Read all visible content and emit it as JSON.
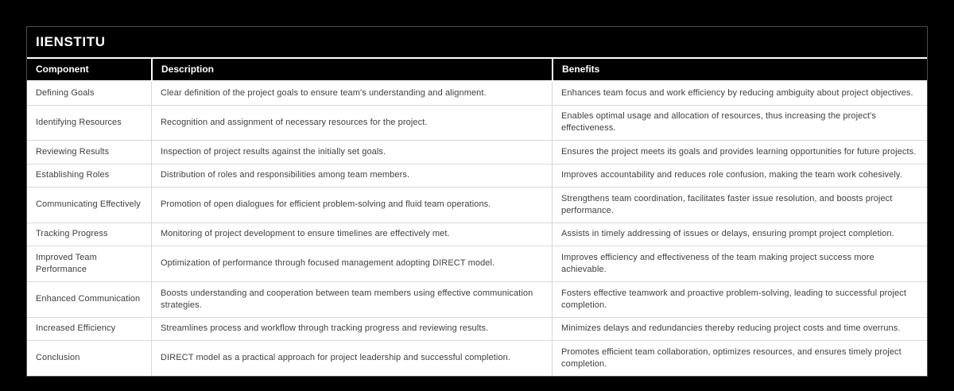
{
  "colors": {
    "page_bg": "#000000",
    "header_bg": "#000000",
    "header_text": "#ffffff",
    "body_bg": "#ffffff",
    "body_text": "#404040",
    "divider": "#d9d9d9",
    "frame_border": "#4d4d4d"
  },
  "table": {
    "title": "IIENSTITU",
    "columns": [
      "Component",
      "Description",
      "Benefits"
    ],
    "rows": [
      {
        "component": "Defining Goals",
        "description": "Clear definition of the project goals to ensure team's understanding and alignment.",
        "benefits": "Enhances team focus and work efficiency by reducing ambiguity about project objectives."
      },
      {
        "component": "Identifying Resources",
        "description": "Recognition and assignment of necessary resources for the project.",
        "benefits": "Enables optimal usage and allocation of resources, thus increasing the project's effectiveness."
      },
      {
        "component": "Reviewing Results",
        "description": "Inspection of project results against the initially set goals.",
        "benefits": "Ensures the project meets its goals and provides learning opportunities for future projects."
      },
      {
        "component": "Establishing Roles",
        "description": "Distribution of roles and responsibilities among team members.",
        "benefits": "Improves accountability and reduces role confusion, making the team work cohesively."
      },
      {
        "component": "Communicating Effectively",
        "description": "Promotion of open dialogues for efficient problem-solving and fluid team operations.",
        "benefits": "Strengthens team coordination, facilitates faster issue resolution, and boosts project performance."
      },
      {
        "component": "Tracking Progress",
        "description": "Monitoring of project development to ensure timelines are effectively met.",
        "benefits": "Assists in timely addressing of issues or delays, ensuring prompt project completion."
      },
      {
        "component": "Improved Team Performance",
        "description": "Optimization of performance through focused management adopting DIRECT model.",
        "benefits": "Improves efficiency and effectiveness of the team making project success more achievable."
      },
      {
        "component": "Enhanced Communication",
        "description": "Boosts understanding and cooperation between team members using effective communication strategies.",
        "benefits": "Fosters effective teamwork and proactive problem-solving, leading to successful project completion."
      },
      {
        "component": "Increased Efficiency",
        "description": "Streamlines process and workflow through tracking progress and reviewing results.",
        "benefits": "Minimizes delays and redundancies thereby reducing project costs and time overruns."
      },
      {
        "component": "Conclusion",
        "description": "DIRECT model as a practical approach for project leadership and successful completion.",
        "benefits": "Promotes efficient team collaboration, optimizes resources, and ensures timely project completion."
      }
    ]
  }
}
